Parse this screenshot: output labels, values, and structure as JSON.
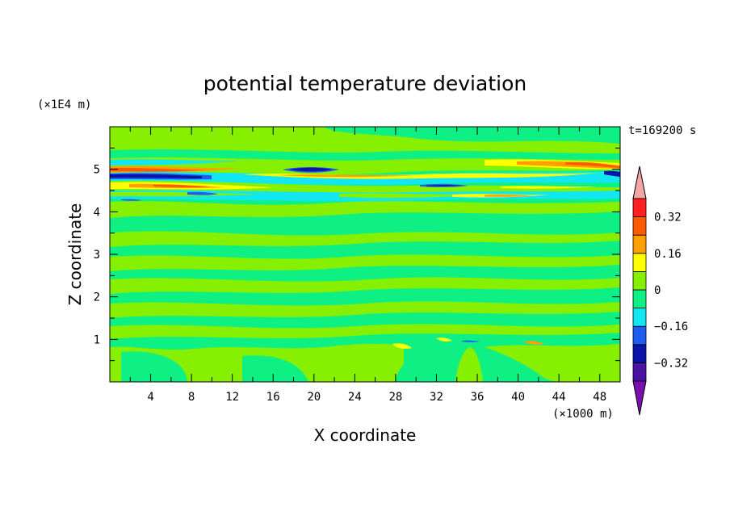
{
  "chart_data": {
    "type": "heatmap",
    "title": "potential temperature deviation",
    "xlabel": "X coordinate",
    "ylabel": "Z coordinate",
    "x_unit": "(×1000 m)",
    "y_unit": "(×1E4 m)",
    "time_label": "t=169200 s",
    "xlim": [
      0,
      50
    ],
    "ylim": [
      0,
      6
    ],
    "xticks": [
      "4",
      "8",
      "12",
      "16",
      "20",
      "24",
      "28",
      "32",
      "36",
      "40",
      "44",
      "48"
    ],
    "yticks": [
      "1",
      "2",
      "3",
      "4",
      "5"
    ],
    "colorbar": {
      "levels": [
        -0.4,
        -0.32,
        -0.24,
        -0.16,
        -0.08,
        0,
        0.08,
        0.16,
        0.24,
        0.32,
        0.4
      ],
      "tick_labels": [
        "0.32",
        "0.16",
        "0",
        "−0.16",
        "−0.32"
      ],
      "colors": [
        "#7a10b0",
        "#4b12a3",
        "#0a14a8",
        "#1f5cf0",
        "#12e6f0",
        "#0ff084",
        "#86f000",
        "#ffff00",
        "#ffa000",
        "#ff5a00",
        "#ff2020",
        "#f4a5a5"
      ]
    },
    "field_description": "horizontally stratified field; mostly 0 to 0.08 (green / light green) with strong alternating positive and negative bands near z 4.3-5.2 (x1E4 m)",
    "bands": [
      {
        "z": 0.5,
        "value": 0.04
      },
      {
        "z": 1.0,
        "value": 0.02
      },
      {
        "z": 1.3,
        "value": 0.04
      },
      {
        "z": 1.6,
        "value": 0.02
      },
      {
        "z": 1.9,
        "value": 0.04
      },
      {
        "z": 2.3,
        "value": 0.02
      },
      {
        "z": 2.7,
        "value": 0.04
      },
      {
        "z": 3.0,
        "value": 0.02
      },
      {
        "z": 3.4,
        "value": 0.04
      },
      {
        "z": 3.8,
        "value": 0.02
      },
      {
        "z": 4.2,
        "value": 0.04
      },
      {
        "z": 4.5,
        "value": 0.2
      },
      {
        "z": 4.65,
        "value": -0.12
      },
      {
        "z": 4.8,
        "value": 0.25
      },
      {
        "z": 5.0,
        "value": -0.3
      },
      {
        "z": 5.15,
        "value": 0.2
      },
      {
        "z": 5.4,
        "value": 0.04
      },
      {
        "z": 5.8,
        "value": 0.02
      }
    ]
  }
}
